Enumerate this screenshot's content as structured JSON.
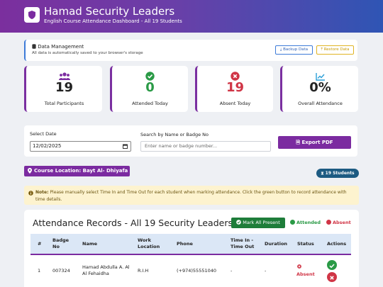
{
  "header": {
    "title": "Hamad Security Leaders",
    "subtitle": "English Course Attendance Dashboard - All 19 Students"
  },
  "data_management": {
    "title": "Data Management",
    "description": "All data is automatically saved to your browser's storage",
    "backup_label": "Backup Data",
    "restore_label": "Restore Data"
  },
  "stats": [
    {
      "value": "19",
      "label": "Total Participants",
      "icon": "users-icon",
      "color": "#7b2ba0"
    },
    {
      "value": "0",
      "label": "Attended Today",
      "icon": "check-circle-icon",
      "color": "#2a9a46"
    },
    {
      "value": "19",
      "label": "Absent Today",
      "icon": "x-circle-icon",
      "color": "#d03546"
    },
    {
      "value": "0%",
      "label": "Overall Attendance",
      "icon": "chart-line-icon",
      "color": "#2b9fd8"
    }
  ],
  "filters": {
    "date_label": "Select Date",
    "date_value": "12/02/2025",
    "search_label": "Search by Name or Badge No",
    "search_placeholder": "Enter name or badge number...",
    "export_label": "Export PDF"
  },
  "location": {
    "label": "Course Location: Bayt Al- Dhiyafa"
  },
  "student_count": "19 Students",
  "note": {
    "prefix": "Note:",
    "text": "Please manually select Time In and Time Out for each student when marking attendance. Click the green button to record attendance with time details."
  },
  "records": {
    "title": "Attendance Records - All 19 Security Leaders",
    "mark_all_label": "Mark All Present",
    "legend_attended": "Attended",
    "legend_absent": "Absent",
    "columns": {
      "num": "#",
      "badge": "Badge No",
      "name": "Name",
      "location": "Work Location",
      "phone": "Phone",
      "time": "Time In - Time Out",
      "duration": "Duration",
      "status": "Status",
      "actions": "Actions"
    },
    "rows": [
      {
        "num": "1",
        "badge": "007324",
        "name": "Hamad Abdulla A. Al Al Fehaidha",
        "location": "R.I.H",
        "phone": "(+974)55551040",
        "time": "-",
        "duration": "-",
        "status": "Absent"
      }
    ]
  }
}
